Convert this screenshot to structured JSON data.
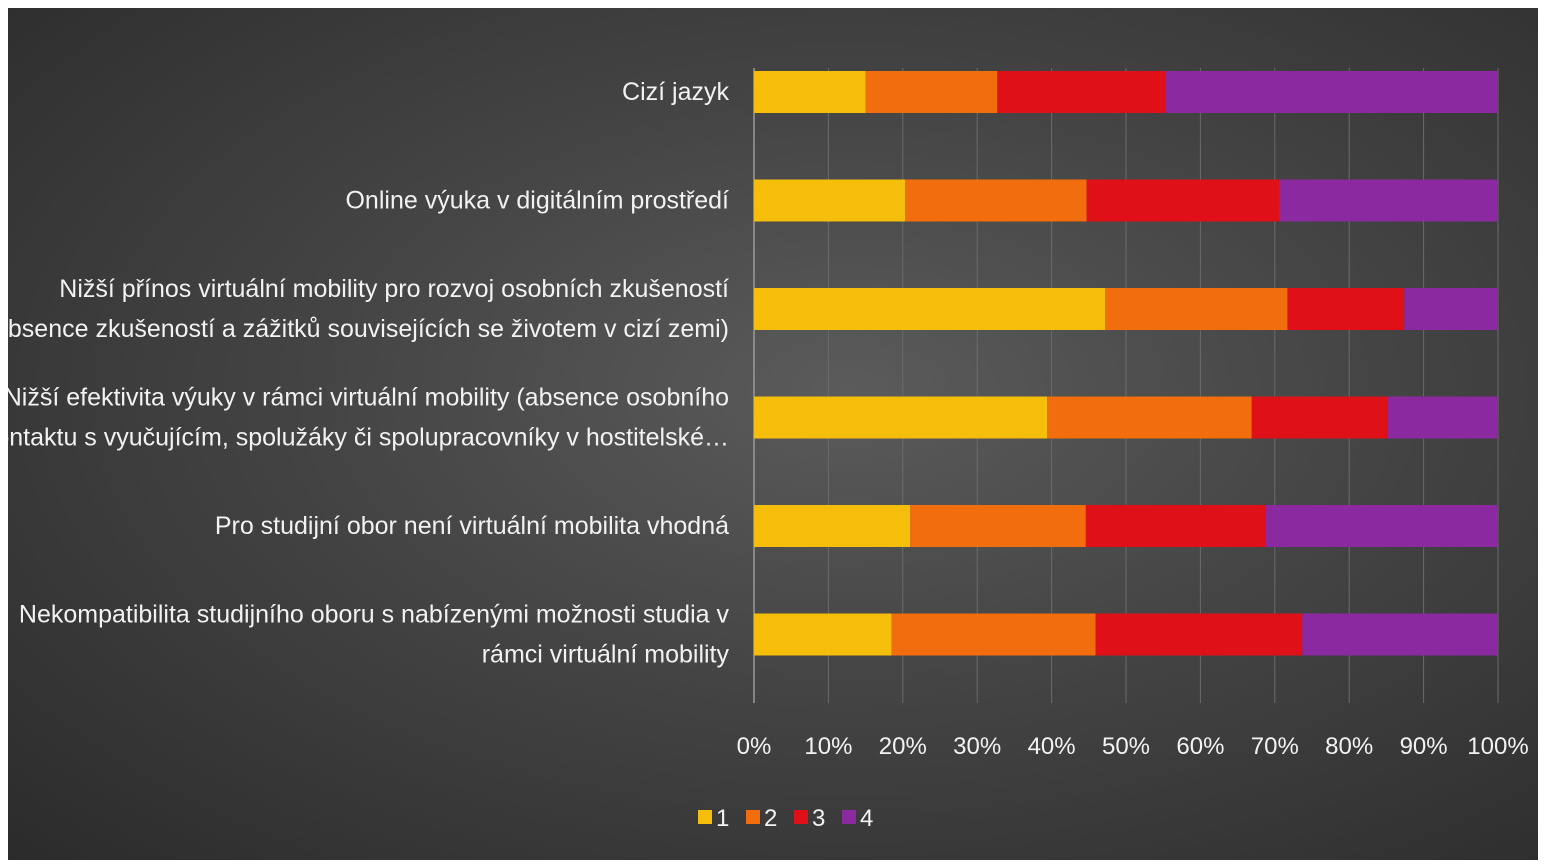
{
  "chart_data": {
    "type": "bar",
    "orientation": "horizontal",
    "stacked": "percent",
    "title": "",
    "xlabel": "",
    "ylabel": "",
    "xlim": [
      0,
      100
    ],
    "grid": true,
    "legend_position": "bottom",
    "categories": [
      [
        "Cizí jazyk"
      ],
      [
        "Online výuka v digitálním prostředí"
      ],
      [
        "Nižší přínos virtuální mobility pro rozvoj osobních zkušeností",
        "(absence zkušeností a zážitků souvisejících se životem v cizí zemi)"
      ],
      [
        "Nižší efektivita výuky v rámci virtuální mobility (absence osobního",
        "kontaktu s vyučujícím, spolužáky či spolupracovníky v hostitelské…"
      ],
      [
        "Pro studijní obor není virtuální mobilita vhodná"
      ],
      [
        "Nekompatibilita studijního oboru s nabízenými možnosti studia v",
        "rámci virtuální mobility"
      ]
    ],
    "tick_labels": [
      "0%",
      "10%",
      "20%",
      "30%",
      "40%",
      "50%",
      "60%",
      "70%",
      "80%",
      "90%",
      "100%"
    ],
    "series": [
      {
        "name": "1",
        "color": "#f5be0b",
        "values": [
          15,
          20.3,
          47.2,
          39.4,
          21,
          18.5
        ]
      },
      {
        "name": "2",
        "color": "#f26d0e",
        "values": [
          17.7,
          24.4,
          24.5,
          27.5,
          23.6,
          27.4
        ]
      },
      {
        "name": "3",
        "color": "#e01018",
        "values": [
          22.6,
          25.9,
          15.7,
          18.3,
          24.2,
          27.8
        ]
      },
      {
        "name": "4",
        "color": "#8b2aa0",
        "values": [
          44.7,
          29.4,
          12.6,
          14.8,
          31.2,
          26.3
        ]
      }
    ]
  }
}
